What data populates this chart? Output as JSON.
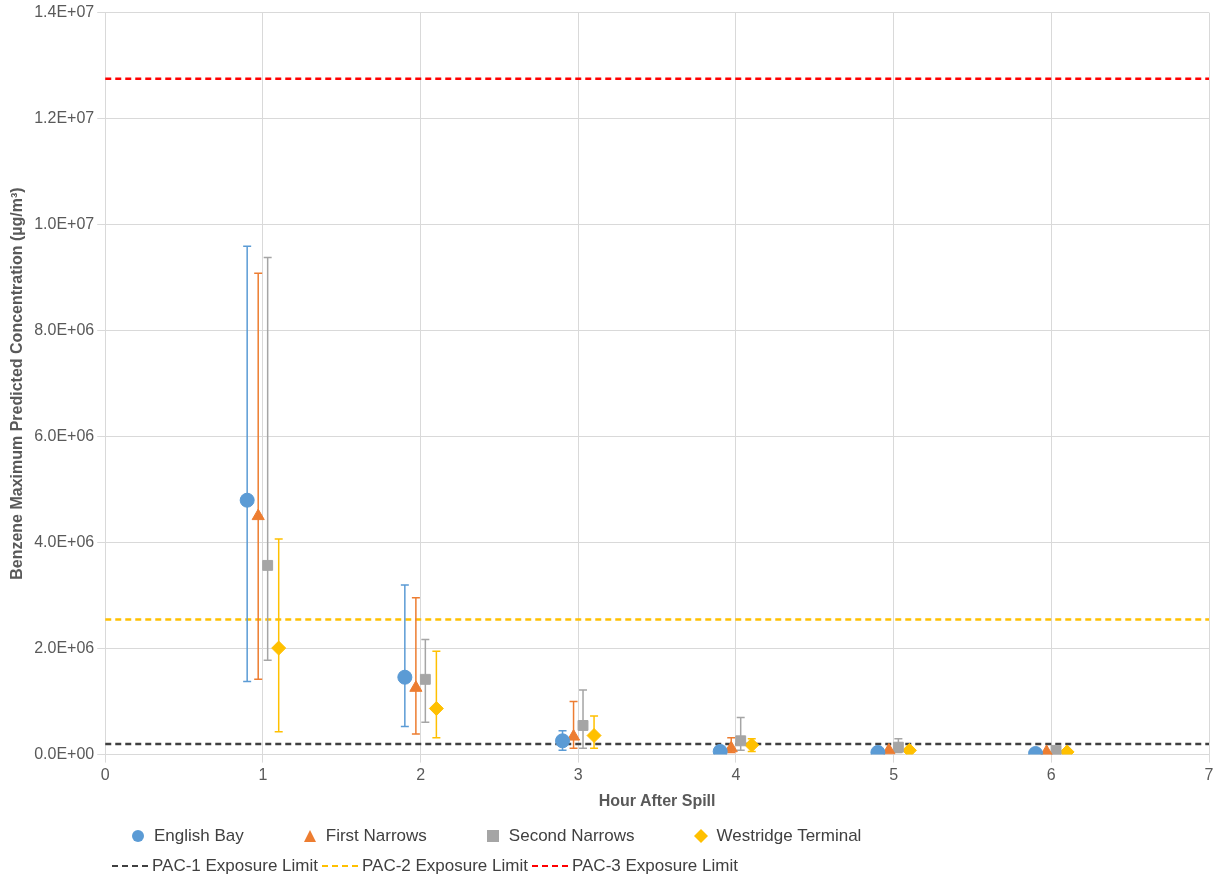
{
  "chart_data": {
    "type": "scatter",
    "xlabel": "Hour After Spill",
    "ylabel": "Benzene Maximum Predicted Concentration (µg/m³)",
    "xlim": [
      0,
      7
    ],
    "xticks": [
      0,
      1,
      2,
      3,
      4,
      5,
      6,
      7
    ],
    "ylim": [
      0,
      14000000
    ],
    "yticks": [
      {
        "value": 0,
        "label": "0.0E+00"
      },
      {
        "value": 2000000,
        "label": "2.0E+06"
      },
      {
        "value": 4000000,
        "label": "4.0E+06"
      },
      {
        "value": 6000000,
        "label": "6.0E+06"
      },
      {
        "value": 8000000,
        "label": "8.0E+06"
      },
      {
        "value": 10000000,
        "label": "1.0E+07"
      },
      {
        "value": 12000000,
        "label": "1.2E+07"
      },
      {
        "value": 14000000,
        "label": "1.4E+07"
      }
    ],
    "grid": true,
    "legend": "bottom",
    "series": [
      {
        "name": "English Bay",
        "color": "#5b9bd5",
        "marker": "circle",
        "x": [
          0.9,
          1.9,
          2.9,
          3.9,
          4.9,
          5.9
        ],
        "values": [
          4800000,
          1460000,
          260000,
          60000,
          40000,
          20000
        ],
        "errors": [
          [
            1380000,
            9590000
          ],
          [
            530000,
            3200000
          ],
          [
            80000,
            450000
          ],
          null,
          null,
          null
        ]
      },
      {
        "name": "First Narrows",
        "color": "#ed7d31",
        "marker": "triangle",
        "x": [
          0.97,
          1.97,
          2.97,
          3.97,
          4.97,
          5.97
        ],
        "values": [
          4500000,
          1260000,
          340000,
          120000,
          80000,
          50000
        ],
        "errors": [
          [
            1420000,
            9080000
          ],
          [
            390000,
            2960000
          ],
          [
            120000,
            1000000
          ],
          [
            40000,
            320000
          ],
          null,
          null
        ]
      },
      {
        "name": "Second Narrows",
        "color": "#a5a5a5",
        "marker": "square",
        "x": [
          1.03,
          2.03,
          3.03,
          4.03,
          5.03,
          6.03
        ],
        "values": [
          3570000,
          1420000,
          550000,
          260000,
          140000,
          80000
        ],
        "errors": [
          [
            1780000,
            9380000
          ],
          [
            610000,
            2170000
          ],
          [
            120000,
            1220000
          ],
          [
            80000,
            700000
          ],
          [
            40000,
            300000
          ],
          null
        ]
      },
      {
        "name": "Westridge Terminal",
        "color": "#ffc000",
        "marker": "diamond",
        "x": [
          1.1,
          2.1,
          3.1,
          4.1,
          5.1,
          6.1
        ],
        "values": [
          2010000,
          870000,
          360000,
          180000,
          80000,
          50000
        ],
        "errors": [
          [
            430000,
            4070000
          ],
          [
            320000,
            1950000
          ],
          [
            120000,
            730000
          ],
          [
            60000,
            300000
          ],
          null,
          null
        ]
      }
    ],
    "ref_lines": [
      {
        "axis": "y",
        "value": 200000,
        "label": "PAC-1 Exposure Limit",
        "color": "#404040",
        "line_style": "dashed"
      },
      {
        "axis": "y",
        "value": 2550000,
        "label": "PAC-2 Exposure Limit",
        "color": "#ffc000",
        "line_style": "dashed"
      },
      {
        "axis": "y",
        "value": 12750000,
        "label": "PAC-3 Exposure Limit",
        "color": "#ff0000",
        "line_style": "dashed"
      }
    ]
  }
}
